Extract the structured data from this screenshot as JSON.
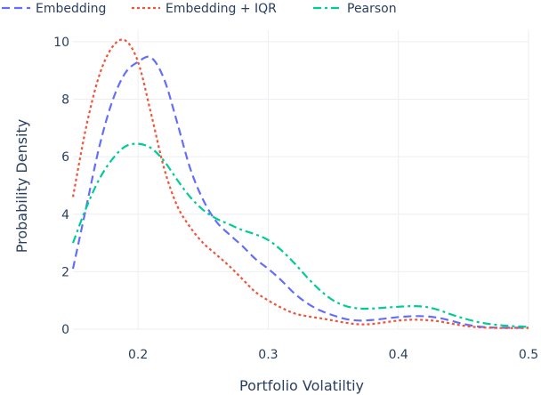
{
  "chart_data": {
    "type": "line",
    "xlabel": "Portfolio Volatiltiy",
    "ylabel": "Probability Density",
    "xlim": [
      0.15,
      0.5
    ],
    "ylim": [
      0,
      10.4
    ],
    "xticks": [
      0.2,
      0.3,
      0.4,
      0.5
    ],
    "xtick_labels": [
      "0.2",
      "0.3",
      "0.4",
      "0.5"
    ],
    "yticks": [
      0,
      2,
      4,
      6,
      8,
      10
    ],
    "ytick_labels": [
      "0",
      "2",
      "4",
      "6",
      "8",
      "10"
    ],
    "grid": true,
    "legend_placement": "top",
    "series": [
      {
        "name": "Embedding",
        "color": "#636efa",
        "dash": "dash",
        "x": [
          0.15,
          0.16,
          0.17,
          0.18,
          0.19,
          0.2,
          0.21,
          0.22,
          0.23,
          0.24,
          0.25,
          0.26,
          0.27,
          0.28,
          0.29,
          0.3,
          0.31,
          0.32,
          0.33,
          0.34,
          0.35,
          0.36,
          0.37,
          0.38,
          0.39,
          0.4,
          0.41,
          0.42,
          0.43,
          0.44,
          0.45,
          0.46,
          0.47,
          0.48,
          0.49,
          0.5
        ],
        "y": [
          2.1,
          4.2,
          6.3,
          7.9,
          8.9,
          9.3,
          9.45,
          8.7,
          7.2,
          5.6,
          4.5,
          3.75,
          3.3,
          2.9,
          2.45,
          2.1,
          1.7,
          1.25,
          0.9,
          0.65,
          0.48,
          0.35,
          0.3,
          0.32,
          0.37,
          0.42,
          0.45,
          0.45,
          0.4,
          0.3,
          0.18,
          0.1,
          0.06,
          0.05,
          0.05,
          0.05
        ]
      },
      {
        "name": "Embedding + IQR",
        "color": "#ef553b",
        "dash": "dot",
        "x": [
          0.15,
          0.16,
          0.17,
          0.18,
          0.19,
          0.2,
          0.21,
          0.22,
          0.23,
          0.24,
          0.25,
          0.26,
          0.27,
          0.28,
          0.29,
          0.3,
          0.31,
          0.32,
          0.33,
          0.34,
          0.35,
          0.36,
          0.37,
          0.38,
          0.39,
          0.4,
          0.41,
          0.42,
          0.43,
          0.44,
          0.45,
          0.46,
          0.47,
          0.48,
          0.49,
          0.5
        ],
        "y": [
          4.6,
          7.0,
          8.8,
          9.8,
          10.05,
          9.3,
          7.5,
          5.6,
          4.3,
          3.55,
          3.0,
          2.6,
          2.2,
          1.75,
          1.3,
          1.0,
          0.75,
          0.55,
          0.45,
          0.38,
          0.3,
          0.22,
          0.17,
          0.18,
          0.24,
          0.3,
          0.33,
          0.32,
          0.28,
          0.2,
          0.12,
          0.07,
          0.05,
          0.04,
          0.04,
          0.04
        ]
      },
      {
        "name": "Pearson",
        "color": "#00cc96",
        "dash": "dashdot",
        "x": [
          0.15,
          0.16,
          0.17,
          0.18,
          0.19,
          0.2,
          0.21,
          0.22,
          0.23,
          0.24,
          0.25,
          0.26,
          0.27,
          0.28,
          0.29,
          0.3,
          0.31,
          0.32,
          0.33,
          0.34,
          0.35,
          0.36,
          0.37,
          0.38,
          0.39,
          0.4,
          0.41,
          0.42,
          0.43,
          0.44,
          0.45,
          0.46,
          0.47,
          0.48,
          0.49,
          0.5
        ],
        "y": [
          3.0,
          4.2,
          5.2,
          5.9,
          6.35,
          6.45,
          6.3,
          5.85,
          5.2,
          4.6,
          4.15,
          3.85,
          3.65,
          3.45,
          3.3,
          3.1,
          2.75,
          2.3,
          1.8,
          1.35,
          1.0,
          0.8,
          0.72,
          0.72,
          0.75,
          0.78,
          0.8,
          0.78,
          0.68,
          0.52,
          0.38,
          0.26,
          0.18,
          0.13,
          0.1,
          0.08
        ]
      }
    ]
  }
}
